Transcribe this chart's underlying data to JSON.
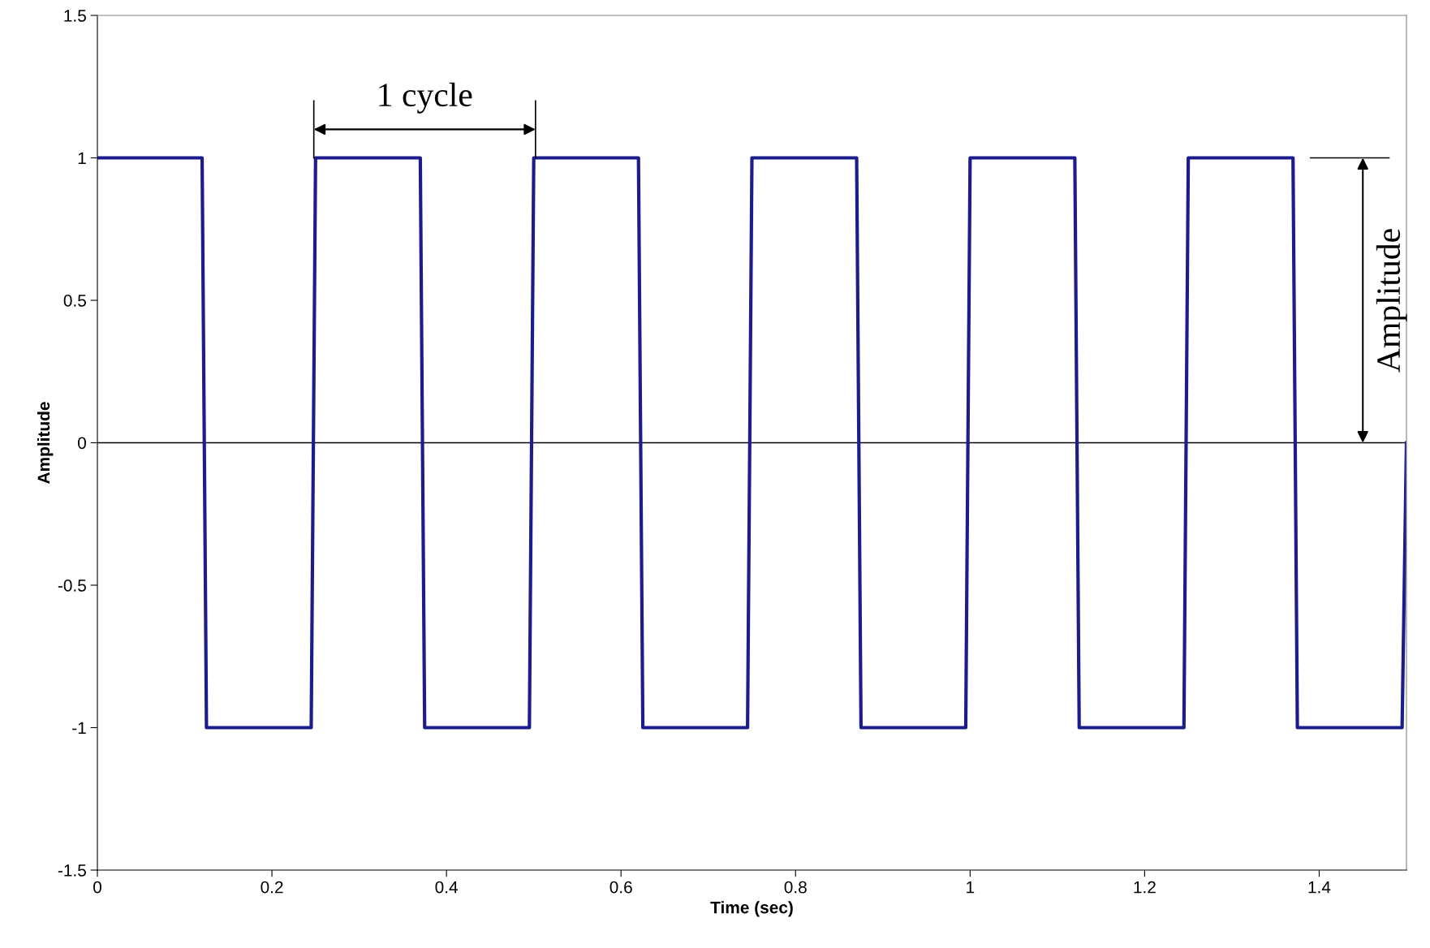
{
  "chart_data": {
    "type": "line",
    "xlabel": "Time (sec)",
    "ylabel": "Amplitude",
    "x": [
      0,
      0.12,
      0.125,
      0.245,
      0.25,
      0.37,
      0.375,
      0.495,
      0.5,
      0.62,
      0.625,
      0.745,
      0.75,
      0.87,
      0.875,
      0.995,
      1.0,
      1.12,
      1.125,
      1.245,
      1.25,
      1.37,
      1.375,
      1.495,
      1.5
    ],
    "series": [
      {
        "color": "#1c1c8c",
        "values": [
          1,
          1,
          -1,
          -1,
          1,
          1,
          -1,
          -1,
          1,
          1,
          -1,
          -1,
          1,
          1,
          -1,
          -1,
          1,
          1,
          -1,
          -1,
          1,
          1,
          -1,
          -1,
          0
        ]
      }
    ],
    "xlim": [
      0,
      1.5
    ],
    "ylim": [
      -1.5,
      1.5
    ],
    "xticks": [
      0,
      0.2,
      0.4,
      0.6,
      0.8,
      1,
      1.2,
      1.4
    ],
    "yticks": [
      -1.5,
      -1,
      -0.5,
      0,
      0.5,
      1,
      1.5
    ],
    "ref_lines": [
      {
        "axis": "y",
        "value": 0,
        "color": "#000000"
      }
    ],
    "annotations": [
      "1 cycle",
      "Amplitude"
    ],
    "grid": false,
    "legend": false,
    "line_style": "solid"
  }
}
